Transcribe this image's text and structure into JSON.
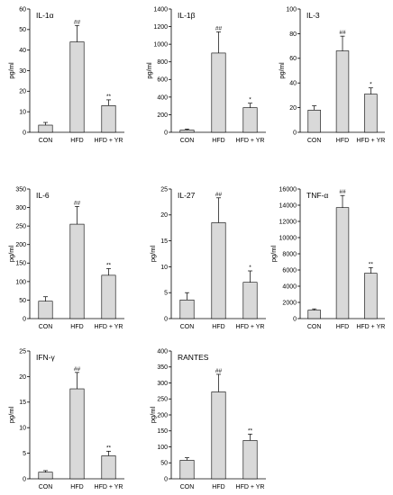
{
  "colors": {
    "bar_fill": "#d9d9d9",
    "bar_stroke": "#000000",
    "axis": "#000000"
  },
  "chart_data": [
    {
      "type": "bar",
      "title": "IL-1α",
      "ylabel": "pg/ml",
      "categories": [
        "CON",
        "HFD",
        "HFD + YR"
      ],
      "values": [
        3.5,
        44,
        13
      ],
      "errors": [
        1.3,
        8,
        2.8
      ],
      "significance": [
        "",
        "##",
        "**"
      ],
      "ylim": [
        0,
        60
      ],
      "yticks": [
        0,
        10,
        20,
        30,
        40,
        50,
        60
      ]
    },
    {
      "type": "bar",
      "title": "IL-1β",
      "ylabel": "pg/ml",
      "categories": [
        "CON",
        "HFD",
        "HFD + YR"
      ],
      "values": [
        25,
        900,
        280
      ],
      "errors": [
        12,
        240,
        50
      ],
      "significance": [
        "",
        "##",
        "*"
      ],
      "ylim": [
        0,
        1400
      ],
      "yticks": [
        0,
        200,
        400,
        600,
        800,
        1000,
        1200,
        1400
      ]
    },
    {
      "type": "bar",
      "title": "IL-3",
      "ylabel": "pg/ml",
      "categories": [
        "CON",
        "HFD",
        "HFD + YR"
      ],
      "values": [
        18,
        66,
        31
      ],
      "errors": [
        3.5,
        12,
        5
      ],
      "significance": [
        "",
        "##",
        "*"
      ],
      "ylim": [
        0,
        100
      ],
      "yticks": [
        0,
        20,
        40,
        60,
        80,
        100
      ]
    },
    {
      "type": "bar",
      "title": "IL-6",
      "ylabel": "pg/ml",
      "categories": [
        "CON",
        "HFD",
        "HFD + YR"
      ],
      "values": [
        47,
        255,
        117
      ],
      "errors": [
        12,
        48,
        18
      ],
      "significance": [
        "",
        "##",
        "**"
      ],
      "ylim": [
        0,
        350
      ],
      "yticks": [
        0,
        50,
        100,
        150,
        200,
        250,
        300,
        350
      ]
    },
    {
      "type": "bar",
      "title": "IL-27",
      "ylabel": "pg/ml",
      "categories": [
        "CON",
        "HFD",
        "HFD + YR"
      ],
      "values": [
        3.6,
        18.5,
        7
      ],
      "errors": [
        1.4,
        4.8,
        2.2
      ],
      "significance": [
        "",
        "##",
        "*"
      ],
      "ylim": [
        0,
        25
      ],
      "yticks": [
        0,
        5,
        10,
        15,
        20,
        25
      ]
    },
    {
      "type": "bar",
      "title": "TNF-α",
      "ylabel": "pg/ml",
      "categories": [
        "CON",
        "HFD",
        "HFD + YR"
      ],
      "values": [
        1050,
        13700,
        5600
      ],
      "errors": [
        150,
        1500,
        700
      ],
      "significance": [
        "",
        "##",
        "**"
      ],
      "ylim": [
        0,
        16000
      ],
      "yticks": [
        0,
        2000,
        4000,
        6000,
        8000,
        10000,
        12000,
        14000,
        16000
      ]
    },
    {
      "type": "bar",
      "title": "IFN-γ",
      "ylabel": "pg/ml",
      "categories": [
        "CON",
        "HFD",
        "HFD + YR"
      ],
      "values": [
        1.3,
        17.6,
        4.5
      ],
      "errors": [
        0.3,
        3.2,
        0.9
      ],
      "significance": [
        "",
        "##",
        "**"
      ],
      "ylim": [
        0,
        25
      ],
      "yticks": [
        0,
        5,
        10,
        15,
        20,
        25
      ]
    },
    {
      "type": "bar",
      "title": "RANTES",
      "ylabel": "pg/ml",
      "categories": [
        "CON",
        "HFD",
        "HFD + YR"
      ],
      "values": [
        58,
        272,
        120
      ],
      "errors": [
        8,
        55,
        20
      ],
      "significance": [
        "",
        "##",
        "**"
      ],
      "ylim": [
        0,
        400
      ],
      "yticks": [
        0,
        50,
        100,
        150,
        200,
        250,
        300,
        350,
        400
      ]
    }
  ]
}
